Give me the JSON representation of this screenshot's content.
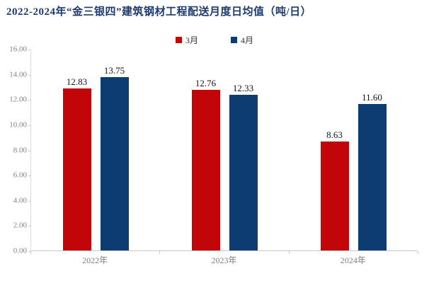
{
  "title": "2022-2024年“金三银四”建筑钢材工程配送月度日均值（吨/日）",
  "colors": {
    "series_march": "#c10508",
    "series_april": "#0c3c71",
    "title_text": "#1e3a6e",
    "axis_text": "#828282",
    "value_label_text": "#141414",
    "axis_line": "#c9c9c9"
  },
  "legend": [
    {
      "label": "3月",
      "color": "#c10508"
    },
    {
      "label": "4月",
      "color": "#0c3c71"
    }
  ],
  "chart_data": {
    "type": "bar",
    "title": "2022-2024年“金三银四”建筑钢材工程配送月度日均值（吨/日）",
    "categories": [
      "2022年",
      "2023年",
      "2024年"
    ],
    "series": [
      {
        "name": "3月",
        "color": "#c10508",
        "values": [
          12.83,
          12.76,
          8.63
        ]
      },
      {
        "name": "4月",
        "color": "#0c3c71",
        "values": [
          13.75,
          12.33,
          11.6
        ]
      }
    ],
    "xlabel": "",
    "ylabel": "",
    "ylim": [
      0,
      16
    ],
    "ytick_step": 2,
    "ytick_labels": [
      "0.00",
      "2.00",
      "4.00",
      "6.00",
      "8.00",
      "10.00",
      "12.00",
      "14.00",
      "16.00"
    ],
    "grid": false,
    "legend_position": "top-center",
    "value_labels": true,
    "value_label_format": "0.00"
  }
}
